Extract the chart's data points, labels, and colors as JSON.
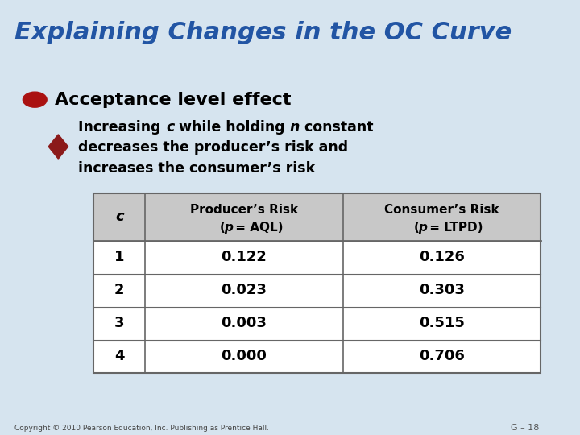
{
  "title": "Explaining Changes in the OC Curve",
  "title_color": "#2255A4",
  "title_fontsize": 22,
  "bg_color": "#D6E4EF",
  "bullet1": "Acceptance level effect",
  "bullet1_color": "#AA1111",
  "bullet2_color": "#8B1A1A",
  "table_header_bg": "#C8C8C8",
  "table_border_color": "#666666",
  "col_headers_line1": [
    "c",
    "Producer’s Risk",
    "Consumer’s Risk"
  ],
  "col_headers_line2": [
    "",
    "(p = AQL)",
    "(p = LTPD)"
  ],
  "rows": [
    [
      "1",
      "0.122",
      "0.126"
    ],
    [
      "2",
      "0.023",
      "0.303"
    ],
    [
      "3",
      "0.003",
      "0.515"
    ],
    [
      "4",
      "0.000",
      "0.706"
    ]
  ],
  "footer": "Copyright © 2010 Pearson Education, Inc. Publishing as Prentice Hall.",
  "page_ref": "G – 18"
}
